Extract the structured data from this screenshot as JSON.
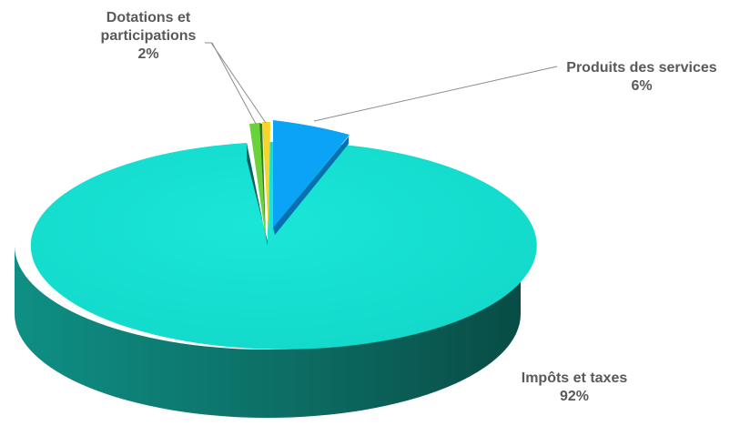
{
  "chart_data": {
    "type": "pie",
    "title": "",
    "three_d": true,
    "slices": [
      {
        "name": "Produits des services",
        "value": 6,
        "label": "6%",
        "color": "#0aa3f5",
        "side_color": "#0a6fb0"
      },
      {
        "name": "Impôts et taxes",
        "value": 92,
        "label": "92%",
        "color": "#14e0d2",
        "side_color": "#0e7f74"
      },
      {
        "name": "Dotations et participations",
        "value": 2,
        "label": "2%",
        "color": "#6ad23a",
        "side_color": "#2f7d18",
        "extra_sliver_color": "#f8d52b"
      }
    ],
    "labels": {
      "produits": {
        "line1": "Produits des services",
        "line2": "6%"
      },
      "impots": {
        "line1": "Impôts et taxes",
        "line2": "92%"
      },
      "dotations": {
        "line1": "Dotations et",
        "line2": "participations",
        "line3": "2%"
      }
    }
  }
}
